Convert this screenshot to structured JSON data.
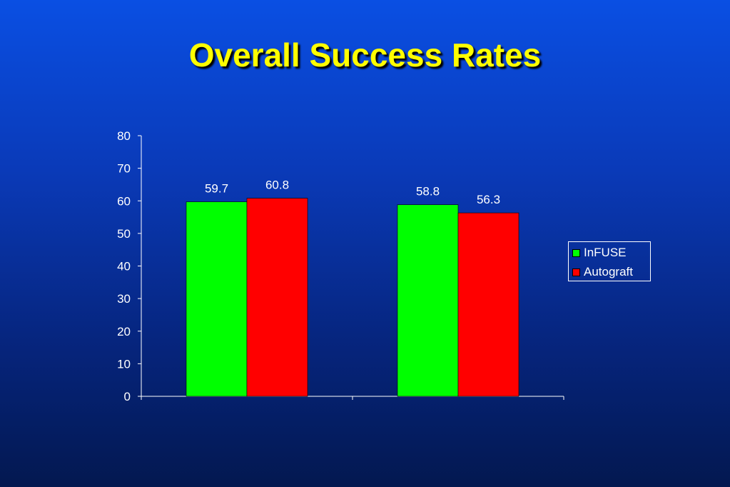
{
  "slide": {
    "title": "Overall Success Rates"
  },
  "chart_data": {
    "type": "bar",
    "categories": [
      "",
      ""
    ],
    "series": [
      {
        "name": "InFUSE",
        "values": [
          59.7,
          58.8
        ],
        "color": "#00ff00"
      },
      {
        "name": "Autograft",
        "values": [
          60.8,
          56.3
        ],
        "color": "#ff0000"
      }
    ],
    "data_labels": [
      [
        "59.7",
        "58.8"
      ],
      [
        "60.8",
        "56.3"
      ]
    ],
    "ylim": [
      0,
      80
    ],
    "yticks": [
      "0",
      "10",
      "20",
      "30",
      "40",
      "50",
      "60",
      "70",
      "80"
    ],
    "xlabel": "",
    "ylabel": "",
    "grid": false,
    "legend": "right"
  }
}
